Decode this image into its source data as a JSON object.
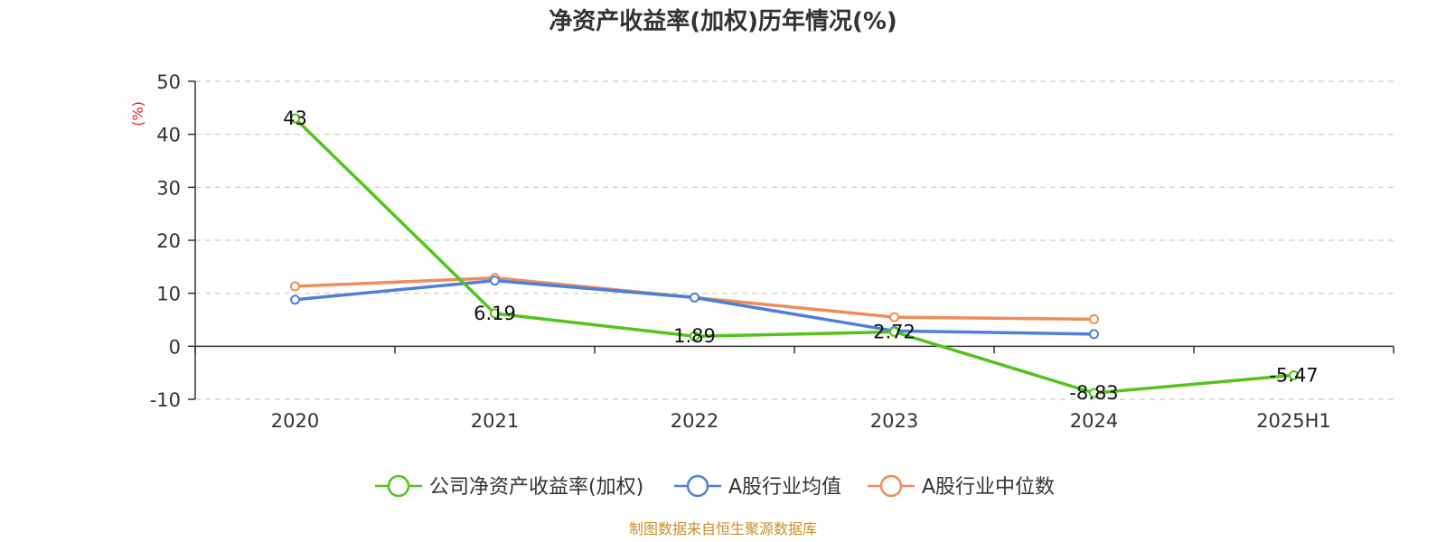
{
  "chart_data": {
    "type": "line",
    "title": "净资产收益率(加权)历年情况(%)",
    "ylabel": "(%)",
    "categories": [
      "2020",
      "2021",
      "2022",
      "2023",
      "2024",
      "2025H1"
    ],
    "ylim": [
      -10,
      50
    ],
    "yticks": [
      50,
      40,
      30,
      20,
      10,
      0,
      -10
    ],
    "grid": true,
    "legend_position": "bottom",
    "series": [
      {
        "name": "公司净资产收益率(加权)",
        "color": "#52c41a",
        "values": [
          43,
          6.19,
          1.89,
          2.72,
          -8.83,
          -5.47
        ],
        "labels": [
          "43",
          "6.19",
          "1.89",
          "2.72",
          "-8.83",
          "-5.47"
        ]
      },
      {
        "name": "A股行业均值",
        "color": "#4e7fdc",
        "values": [
          8.8,
          12.4,
          9.2,
          2.9,
          2.3,
          null
        ]
      },
      {
        "name": "A股行业中位数",
        "color": "#f08c5a",
        "values": [
          11.3,
          12.9,
          9.2,
          5.5,
          5.1,
          null
        ]
      }
    ],
    "source": "制图数据来自恒生聚源数据库",
    "colors": {
      "unit_label": "#e02020",
      "source_text": "#c8902a",
      "grid": "#cccccc",
      "axis": "#333333"
    }
  }
}
